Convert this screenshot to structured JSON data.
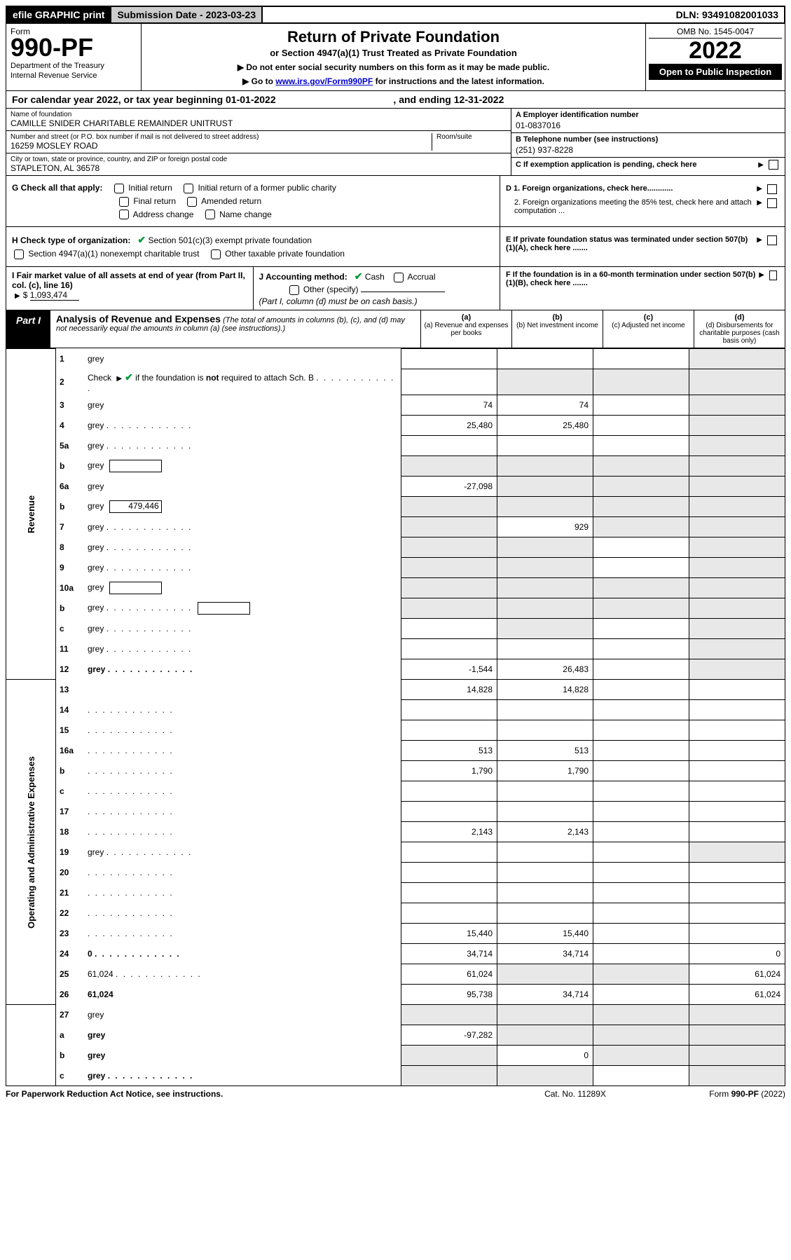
{
  "topbar": {
    "efile": "efile GRAPHIC print",
    "submission_label": "Submission Date - 2023-03-23",
    "dln_label": "DLN: 93491082001033"
  },
  "header": {
    "form_word": "Form",
    "form_number": "990-PF",
    "dept1": "Department of the Treasury",
    "dept2": "Internal Revenue Service",
    "title": "Return of Private Foundation",
    "subtitle": "or Section 4947(a)(1) Trust Treated as Private Foundation",
    "note1": "▶ Do not enter social security numbers on this form as it may be made public.",
    "note2_pre": "▶ Go to ",
    "note2_link": "www.irs.gov/Form990PF",
    "note2_post": " for instructions and the latest information.",
    "omb": "OMB No. 1545-0047",
    "year": "2022",
    "inspection": "Open to Public Inspection"
  },
  "cal_year": {
    "pre": "For calendar year 2022, or tax year beginning ",
    "begin": "01-01-2022",
    "mid": " , and ending ",
    "end": "12-31-2022"
  },
  "org": {
    "name_label": "Name of foundation",
    "name": "CAMILLE SNIDER CHARITABLE REMAINDER UNITRUST",
    "addr_label": "Number and street (or P.O. box number if mail is not delivered to street address)",
    "addr": "16259 MOSLEY ROAD",
    "room_label": "Room/suite",
    "city_label": "City or town, state or province, country, and ZIP or foreign postal code",
    "city": "STAPLETON, AL  36578",
    "a_label": "A Employer identification number",
    "a_val": "01-0837016",
    "b_label": "B Telephone number (see instructions)",
    "b_val": "(251) 937-8228",
    "c_label": "C If exemption application is pending, check here",
    "d1_label": "D 1. Foreign organizations, check here............",
    "d2_label": "2. Foreign organizations meeting the 85% test, check here and attach computation ...",
    "e_label": "E  If private foundation status was terminated under section 507(b)(1)(A), check here .......",
    "f_label": "F  If the foundation is in a 60-month termination under section 507(b)(1)(B), check here .......",
    "g_label": "G Check all that apply:",
    "g_opts": [
      "Initial return",
      "Initial return of a former public charity",
      "Final return",
      "Amended return",
      "Address change",
      "Name change"
    ],
    "h_label": "H Check type of organization:",
    "h1": "Section 501(c)(3) exempt private foundation",
    "h2": "Section 4947(a)(1) nonexempt charitable trust",
    "h3": "Other taxable private foundation",
    "i_label": "I Fair market value of all assets at end of year (from Part II, col. (c), line 16)",
    "i_val": "1,093,474",
    "j_label": "J Accounting method:",
    "j_cash": "Cash",
    "j_accrual": "Accrual",
    "j_other": "Other (specify)",
    "j_note": "(Part I, column (d) must be on cash basis.)"
  },
  "part1": {
    "tag": "Part I",
    "title": "Analysis of Revenue and Expenses",
    "title_note": "(The total of amounts in columns (b), (c), and (d) may not necessarily equal the amounts in column (a) (see instructions).)",
    "cols": {
      "a": "(a)  Revenue and expenses per books",
      "b": "(b)  Net investment income",
      "c": "(c)  Adjusted net income",
      "d": "(d)  Disbursements for charitable purposes (cash basis only)"
    }
  },
  "side_labels": {
    "revenue": "Revenue",
    "expenses": "Operating and Administrative Expenses"
  },
  "rows": [
    {
      "n": "1",
      "d": "grey",
      "a": "",
      "b": "",
      "c": ""
    },
    {
      "n": "2",
      "d": "grey",
      "dots": true,
      "a": "",
      "b": "grey",
      "c": "grey",
      "check": true
    },
    {
      "n": "3",
      "d": "grey",
      "a": "74",
      "b": "74",
      "c": ""
    },
    {
      "n": "4",
      "d": "grey",
      "dots": true,
      "a": "25,480",
      "b": "25,480",
      "c": ""
    },
    {
      "n": "5a",
      "d": "grey",
      "dots": true,
      "a": "",
      "b": "",
      "c": ""
    },
    {
      "n": "b",
      "d": "grey",
      "box": true,
      "a": "grey",
      "b": "grey",
      "c": "grey"
    },
    {
      "n": "6a",
      "d": "grey",
      "a": "-27,098",
      "b": "grey",
      "c": "grey"
    },
    {
      "n": "b",
      "d": "grey",
      "box": true,
      "boxval": "479,446",
      "a": "grey",
      "b": "grey",
      "c": "grey"
    },
    {
      "n": "7",
      "d": "grey",
      "dots": true,
      "a": "grey",
      "b": "929",
      "c": "grey"
    },
    {
      "n": "8",
      "d": "grey",
      "dots": true,
      "a": "grey",
      "b": "grey",
      "c": ""
    },
    {
      "n": "9",
      "d": "grey",
      "dots": true,
      "a": "grey",
      "b": "grey",
      "c": ""
    },
    {
      "n": "10a",
      "d": "grey",
      "box": true,
      "a": "grey",
      "b": "grey",
      "c": "grey"
    },
    {
      "n": "b",
      "d": "grey",
      "dots": true,
      "box": true,
      "a": "grey",
      "b": "grey",
      "c": "grey"
    },
    {
      "n": "c",
      "d": "grey",
      "dots": true,
      "a": "",
      "b": "grey",
      "c": ""
    },
    {
      "n": "11",
      "d": "grey",
      "dots": true,
      "a": "",
      "b": "",
      "c": ""
    },
    {
      "n": "12",
      "d": "grey",
      "dots": true,
      "bold": true,
      "a": "-1,544",
      "b": "26,483",
      "c": ""
    },
    {
      "n": "13",
      "d": "",
      "a": "14,828",
      "b": "14,828",
      "c": ""
    },
    {
      "n": "14",
      "d": "",
      "dots": true,
      "a": "",
      "b": "",
      "c": ""
    },
    {
      "n": "15",
      "d": "",
      "dots": true,
      "a": "",
      "b": "",
      "c": ""
    },
    {
      "n": "16a",
      "d": "",
      "dots": true,
      "a": "513",
      "b": "513",
      "c": ""
    },
    {
      "n": "b",
      "d": "",
      "dots": true,
      "a": "1,790",
      "b": "1,790",
      "c": ""
    },
    {
      "n": "c",
      "d": "",
      "dots": true,
      "a": "",
      "b": "",
      "c": ""
    },
    {
      "n": "17",
      "d": "",
      "dots": true,
      "a": "",
      "b": "",
      "c": ""
    },
    {
      "n": "18",
      "d": "",
      "dots": true,
      "a": "2,143",
      "b": "2,143",
      "c": ""
    },
    {
      "n": "19",
      "d": "grey",
      "dots": true,
      "a": "",
      "b": "",
      "c": ""
    },
    {
      "n": "20",
      "d": "",
      "dots": true,
      "a": "",
      "b": "",
      "c": ""
    },
    {
      "n": "21",
      "d": "",
      "dots": true,
      "a": "",
      "b": "",
      "c": ""
    },
    {
      "n": "22",
      "d": "",
      "dots": true,
      "a": "",
      "b": "",
      "c": ""
    },
    {
      "n": "23",
      "d": "",
      "dots": true,
      "a": "15,440",
      "b": "15,440",
      "c": ""
    },
    {
      "n": "24",
      "d": "0",
      "dots": true,
      "bold": true,
      "a": "34,714",
      "b": "34,714",
      "c": ""
    },
    {
      "n": "25",
      "d": "61,024",
      "dots": true,
      "a": "61,024",
      "b": "grey",
      "c": "grey"
    },
    {
      "n": "26",
      "d": "61,024",
      "bold": true,
      "a": "95,738",
      "b": "34,714",
      "c": ""
    },
    {
      "n": "27",
      "d": "grey",
      "a": "grey",
      "b": "grey",
      "c": "grey"
    },
    {
      "n": "a",
      "d": "grey",
      "bold": true,
      "a": "-97,282",
      "b": "grey",
      "c": "grey"
    },
    {
      "n": "b",
      "d": "grey",
      "bold": true,
      "a": "grey",
      "b": "0",
      "c": "grey"
    },
    {
      "n": "c",
      "d": "grey",
      "dots": true,
      "bold": true,
      "a": "grey",
      "b": "grey",
      "c": ""
    }
  ],
  "footer": {
    "left": "For Paperwork Reduction Act Notice, see instructions.",
    "mid": "Cat. No. 11289X",
    "right": "Form 990-PF (2022)"
  }
}
